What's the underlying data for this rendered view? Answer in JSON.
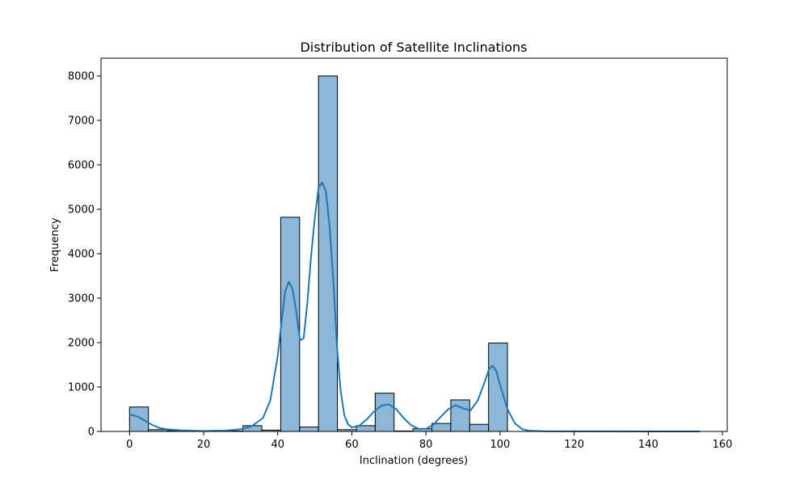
{
  "chart_data": {
    "type": "bar",
    "title": "Distribution of Satellite Inclinations",
    "xlabel": "Inclination (degrees)",
    "ylabel": "Frequency",
    "xlim": [
      -7.7,
      161.3
    ],
    "ylim": [
      0,
      8400
    ],
    "xticks": [
      0,
      20,
      40,
      60,
      80,
      100,
      120,
      140,
      160
    ],
    "yticks": [
      0,
      1000,
      2000,
      3000,
      4000,
      5000,
      6000,
      7000,
      8000
    ],
    "grid": false,
    "legend": "none",
    "bar_color": "#8cb7d8",
    "bar_edge_color": "#000000",
    "kde_color": "#1f77b4",
    "bins": [
      {
        "start": 0.0,
        "end": 5.1,
        "count": 550
      },
      {
        "start": 5.1,
        "end": 10.2,
        "count": 40
      },
      {
        "start": 10.2,
        "end": 15.3,
        "count": 20
      },
      {
        "start": 15.3,
        "end": 20.4,
        "count": 10
      },
      {
        "start": 20.4,
        "end": 25.5,
        "count": 5
      },
      {
        "start": 25.5,
        "end": 30.6,
        "count": 10
      },
      {
        "start": 30.6,
        "end": 35.7,
        "count": 130
      },
      {
        "start": 35.7,
        "end": 40.8,
        "count": 30
      },
      {
        "start": 40.8,
        "end": 45.9,
        "count": 4820
      },
      {
        "start": 45.9,
        "end": 51.0,
        "count": 100
      },
      {
        "start": 51.0,
        "end": 56.1,
        "count": 8000
      },
      {
        "start": 56.1,
        "end": 61.2,
        "count": 40
      },
      {
        "start": 61.2,
        "end": 66.3,
        "count": 130
      },
      {
        "start": 66.3,
        "end": 71.4,
        "count": 860
      },
      {
        "start": 71.4,
        "end": 76.5,
        "count": 10
      },
      {
        "start": 76.5,
        "end": 81.6,
        "count": 60
      },
      {
        "start": 81.6,
        "end": 86.7,
        "count": 180
      },
      {
        "start": 86.7,
        "end": 91.8,
        "count": 710
      },
      {
        "start": 91.8,
        "end": 96.9,
        "count": 160
      },
      {
        "start": 96.9,
        "end": 102.0,
        "count": 1990
      }
    ],
    "kde": {
      "x": [
        0,
        2,
        4,
        6,
        8,
        10,
        14,
        20,
        26,
        30,
        33,
        36,
        38,
        40,
        41,
        42,
        43,
        44,
        45,
        46,
        47,
        48,
        49,
        50,
        51,
        52,
        53,
        54,
        55,
        56,
        57,
        58,
        59,
        60,
        62,
        64,
        66,
        68,
        70,
        72,
        74,
        76,
        78,
        80,
        82,
        84,
        86,
        88,
        90,
        92,
        94,
        96,
        97,
        98,
        99,
        100,
        102,
        104,
        106,
        108,
        112,
        120,
        130,
        140,
        150,
        154
      ],
      "y": [
        380,
        340,
        250,
        150,
        80,
        50,
        25,
        10,
        20,
        50,
        120,
        300,
        700,
        1700,
        2450,
        3150,
        3370,
        3200,
        2700,
        2050,
        2100,
        2900,
        3950,
        4800,
        5480,
        5600,
        5400,
        4600,
        3400,
        1900,
        900,
        350,
        160,
        90,
        130,
        270,
        450,
        580,
        610,
        500,
        300,
        140,
        60,
        60,
        150,
        330,
        500,
        590,
        520,
        470,
        700,
        1150,
        1400,
        1480,
        1350,
        1050,
        500,
        180,
        50,
        15,
        5,
        3,
        2,
        1,
        1,
        0
      ]
    }
  }
}
